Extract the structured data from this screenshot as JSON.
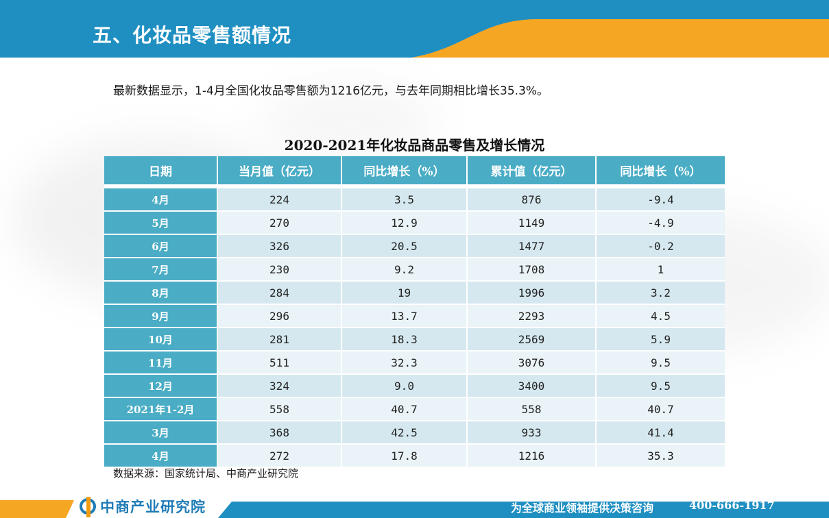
{
  "header": {
    "title": "五、化妆品零售额情况"
  },
  "intro": "最新数据显示，1-4月全国化妆品零售额为1216亿元，与去年同期相比增长35.3%。",
  "table": {
    "title": "2020-2021年化妆品商品零售及增长情况",
    "columns": [
      "日期",
      "当月值（亿元）",
      "同比增长（%）",
      "累计值（亿元）",
      "同比增长（%）"
    ],
    "rows": [
      [
        "4月",
        "224",
        "3.5",
        "876",
        "-9.4"
      ],
      [
        "5月",
        "270",
        "12.9",
        "1149",
        "-4.9"
      ],
      [
        "6月",
        "326",
        "20.5",
        "1477",
        "-0.2"
      ],
      [
        "7月",
        "230",
        "9.2",
        "1708",
        "1"
      ],
      [
        "8月",
        "284",
        "19",
        "1996",
        "3.2"
      ],
      [
        "9月",
        "296",
        "13.7",
        "2293",
        "4.5"
      ],
      [
        "10月",
        "281",
        "18.3",
        "2569",
        "5.9"
      ],
      [
        "11月",
        "511",
        "32.3",
        "3076",
        "9.5"
      ],
      [
        "12月",
        "324",
        "9.0",
        "3400",
        "9.5"
      ],
      [
        "2021年1-2月",
        "558",
        "40.7",
        "558",
        "40.7"
      ],
      [
        "3月",
        "368",
        "42.5",
        "933",
        "41.4"
      ],
      [
        "4月",
        "272",
        "17.8",
        "1216",
        "35.3"
      ]
    ]
  },
  "source": "数据来源：国家统计局、中商产业研究院",
  "footer": {
    "logo_text": "中商产业研究院",
    "slogan": "为全球商业领袖提供决策咨询",
    "phone": "400-666-1917"
  },
  "colors": {
    "header_blue": "#1f8fc2",
    "accent_orange": "#f5a623",
    "table_header": "#4aacc5",
    "row_light": "#d5e8ef",
    "row_lighter": "#eaf3f7"
  }
}
